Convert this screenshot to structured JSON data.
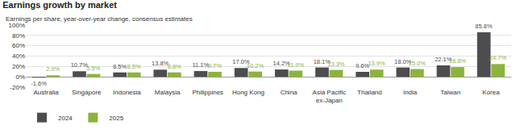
{
  "chart_data": {
    "type": "bar",
    "title": "Earnings growth by market",
    "subtitle": "Earnings per share, year-over-year change, consensus estimates",
    "categories": [
      "Australia",
      "Singapore",
      "Indonesia",
      "Malaysia",
      "Philippines",
      "Hong Kong",
      "China",
      "Asia Pacific ex-Japan",
      "Thailand",
      "India",
      "Taiwan",
      "Korea"
    ],
    "series": [
      {
        "name": "2024",
        "color": "#4d4d4f",
        "values": [
          -1.6,
          10.7,
          8.5,
          13.8,
          11.1,
          17.0,
          14.2,
          18.1,
          9.6,
          18.0,
          22.1,
          85.8
        ],
        "value_labels": [
          "-1.6%",
          "10.7%",
          "8.5%",
          "13.8%",
          "11.1%",
          "17.0%",
          "14.2%",
          "18.1%",
          "9.6%",
          "18.0%",
          "22.1%",
          "85.8%"
        ]
      },
      {
        "name": "2025",
        "color": "#8cb43c",
        "values": [
          2.9,
          5.5,
          8.5,
          8.6,
          9.7,
          10.2,
          11.9,
          13.3,
          13.9,
          15.0,
          18.8,
          24.7
        ],
        "value_labels": [
          "2.9%",
          "5.5%",
          "8.5%",
          "8.6%",
          "9.7%",
          "10.2%",
          "11.9%",
          "13.3%",
          "13.9%",
          "15.0%",
          "18.8%",
          "24.7%"
        ]
      }
    ],
    "ylim": [
      -20,
      100
    ],
    "yticks": [
      {
        "value": -20,
        "label": "-20%"
      },
      {
        "value": 0,
        "label": "0%"
      },
      {
        "value": 20,
        "label": "20%"
      },
      {
        "value": 40,
        "label": "40%"
      },
      {
        "value": 60,
        "label": "60%"
      },
      {
        "value": 80,
        "label": "80%"
      },
      {
        "value": 100,
        "label": "100%"
      }
    ],
    "grid": true,
    "legend": "bottom left",
    "data_labels": true
  }
}
